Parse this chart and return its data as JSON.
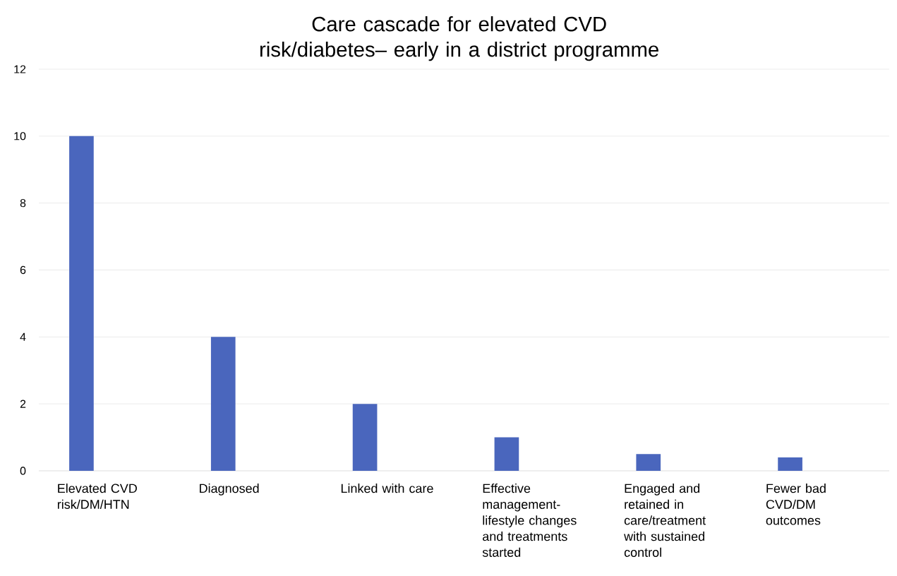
{
  "chart_data": {
    "type": "bar",
    "title": "Care cascade for elevated CVD risk/diabetes– early in a district programme",
    "categories": [
      "Elevated CVD risk/DM/HTN",
      "Diagnosed",
      "Linked with care",
      "Effective management-lifestyle changes and treatments started",
      "Engaged and retained in care/treatment with sustained control",
      "Fewer bad CVD/DM outcomes"
    ],
    "values": [
      10,
      4,
      2,
      1,
      0.5,
      0.4
    ],
    "color": "#4a66bd",
    "ylim": [
      0,
      12
    ],
    "yticks": [
      0,
      2,
      4,
      6,
      8,
      10,
      12
    ],
    "grid": "y"
  }
}
